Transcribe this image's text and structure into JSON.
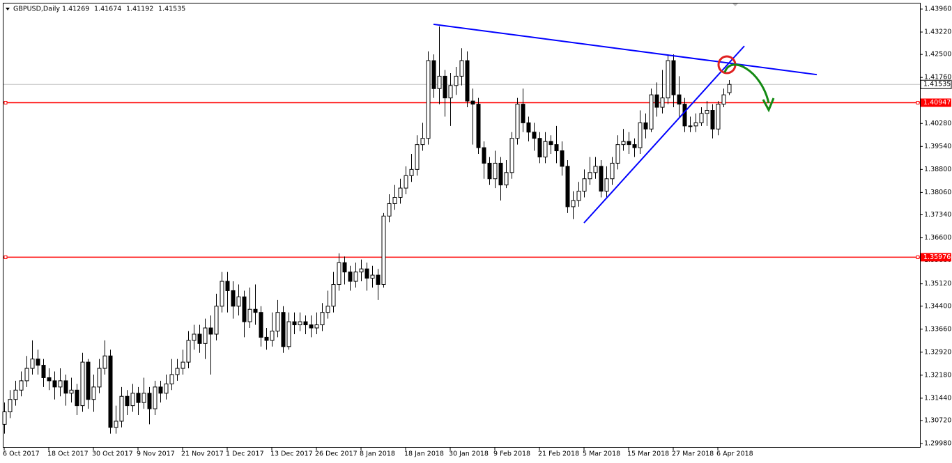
{
  "chart_data": {
    "type": "candlestick",
    "title": "GBPUSD,Daily",
    "color": "#000000",
    "background": "#ffffff",
    "open": [
      1.306,
      1.31,
      1.314,
      1.317,
      1.32,
      1.324,
      1.327,
      1.325,
      1.321,
      1.32,
      1.318,
      1.32,
      1.316,
      1.317,
      1.312,
      1.326,
      1.314,
      1.318,
      1.324,
      1.328,
      1.305,
      1.307,
      1.315,
      1.312,
      1.316,
      1.313,
      1.316,
      1.311,
      1.318,
      1.316,
      1.319,
      1.322,
      1.324,
      1.326,
      1.333,
      1.335,
      1.332,
      1.337,
      1.335,
      1.344,
      1.352,
      1.349,
      1.344,
      1.347,
      1.339,
      1.343,
      1.342,
      1.334,
      1.333,
      1.336,
      1.342,
      1.331,
      1.339,
      1.338,
      1.339,
      1.338,
      1.337,
      1.338,
      1.342,
      1.344,
      1.351,
      1.358,
      1.355,
      1.352,
      1.355,
      1.356,
      1.353,
      1.354,
      1.351,
      1.373,
      1.377,
      1.379,
      1.382,
      1.386,
      1.388,
      1.396,
      1.398,
      1.423,
      1.414,
      1.418,
      1.411,
      1.415,
      1.418,
      1.423,
      1.41,
      1.409,
      1.395,
      1.39,
      1.385,
      1.39,
      1.383,
      1.387,
      1.398,
      1.409,
      1.403,
      1.4,
      1.398,
      1.392,
      1.397,
      1.396,
      1.394,
      1.389,
      1.376,
      1.378,
      1.381,
      1.385,
      1.387,
      1.389,
      1.381,
      1.385,
      1.39,
      1.396,
      1.397,
      1.396,
      1.395,
      1.403,
      1.401,
      1.412,
      1.408,
      1.411,
      1.423,
      1.412,
      1.409,
      1.402,
      1.402,
      1.403,
      1.406,
      1.407,
      1.401,
      1.409,
      1.41269
    ],
    "high": [
      1.313,
      1.317,
      1.32,
      1.323,
      1.328,
      1.333,
      1.33,
      1.327,
      1.324,
      1.323,
      1.324,
      1.322,
      1.321,
      1.319,
      1.329,
      1.327,
      1.322,
      1.327,
      1.333,
      1.33,
      1.312,
      1.318,
      1.317,
      1.319,
      1.318,
      1.321,
      1.318,
      1.32,
      1.32,
      1.322,
      1.327,
      1.327,
      1.33,
      1.336,
      1.338,
      1.338,
      1.34,
      1.341,
      1.348,
      1.355,
      1.355,
      1.352,
      1.351,
      1.349,
      1.35,
      1.351,
      1.344,
      1.337,
      1.342,
      1.346,
      1.344,
      1.342,
      1.342,
      1.342,
      1.341,
      1.341,
      1.342,
      1.345,
      1.349,
      1.355,
      1.361,
      1.36,
      1.357,
      1.358,
      1.359,
      1.358,
      1.357,
      1.356,
      1.374,
      1.38,
      1.383,
      1.385,
      1.389,
      1.393,
      1.399,
      1.403,
      1.426,
      1.425,
      1.434,
      1.42,
      1.419,
      1.421,
      1.427,
      1.426,
      1.414,
      1.411,
      1.397,
      1.392,
      1.394,
      1.392,
      1.391,
      1.4,
      1.411,
      1.414,
      1.405,
      1.403,
      1.4,
      1.4,
      1.399,
      1.402,
      1.397,
      1.391,
      1.381,
      1.384,
      1.388,
      1.392,
      1.392,
      1.391,
      1.389,
      1.392,
      1.399,
      1.401,
      1.4,
      1.398,
      1.407,
      1.406,
      1.414,
      1.416,
      1.42,
      1.425,
      1.425,
      1.418,
      1.411,
      1.405,
      1.406,
      1.408,
      1.41,
      1.409,
      1.41,
      1.414,
      1.41674
    ],
    "low": [
      1.303,
      1.308,
      1.312,
      1.315,
      1.318,
      1.322,
      1.322,
      1.318,
      1.317,
      1.314,
      1.315,
      1.312,
      1.313,
      1.309,
      1.31,
      1.311,
      1.31,
      1.316,
      1.322,
      1.303,
      1.303,
      1.305,
      1.309,
      1.31,
      1.309,
      1.311,
      1.306,
      1.309,
      1.313,
      1.314,
      1.317,
      1.32,
      1.322,
      1.324,
      1.33,
      1.329,
      1.327,
      1.322,
      1.333,
      1.342,
      1.342,
      1.34,
      1.341,
      1.334,
      1.337,
      1.338,
      1.331,
      1.33,
      1.331,
      1.334,
      1.329,
      1.33,
      1.335,
      1.336,
      1.335,
      1.334,
      1.335,
      1.336,
      1.34,
      1.342,
      1.349,
      1.351,
      1.349,
      1.35,
      1.352,
      1.349,
      1.35,
      1.346,
      1.35,
      1.371,
      1.375,
      1.377,
      1.38,
      1.384,
      1.386,
      1.394,
      1.396,
      1.411,
      1.409,
      1.405,
      1.402,
      1.412,
      1.415,
      1.408,
      1.396,
      1.393,
      1.385,
      1.383,
      1.382,
      1.378,
      1.382,
      1.385,
      1.396,
      1.4,
      1.397,
      1.394,
      1.39,
      1.39,
      1.393,
      1.39,
      1.386,
      1.374,
      1.372,
      1.376,
      1.379,
      1.383,
      1.385,
      1.379,
      1.379,
      1.383,
      1.388,
      1.394,
      1.393,
      1.392,
      1.393,
      1.398,
      1.4,
      1.405,
      1.406,
      1.409,
      1.408,
      1.405,
      1.4,
      1.4,
      1.4,
      1.402,
      1.402,
      1.398,
      1.399,
      1.408,
      1.41192
    ],
    "close": [
      1.31,
      1.314,
      1.317,
      1.32,
      1.324,
      1.327,
      1.325,
      1.321,
      1.32,
      1.318,
      1.32,
      1.316,
      1.317,
      1.312,
      1.326,
      1.314,
      1.318,
      1.324,
      1.328,
      1.305,
      1.307,
      1.315,
      1.312,
      1.316,
      1.313,
      1.316,
      1.311,
      1.318,
      1.316,
      1.319,
      1.322,
      1.324,
      1.326,
      1.333,
      1.335,
      1.332,
      1.337,
      1.335,
      1.344,
      1.352,
      1.349,
      1.344,
      1.347,
      1.339,
      1.343,
      1.342,
      1.334,
      1.333,
      1.336,
      1.342,
      1.331,
      1.339,
      1.338,
      1.339,
      1.338,
      1.337,
      1.338,
      1.342,
      1.344,
      1.351,
      1.358,
      1.355,
      1.352,
      1.355,
      1.356,
      1.353,
      1.354,
      1.351,
      1.373,
      1.377,
      1.379,
      1.382,
      1.386,
      1.388,
      1.396,
      1.398,
      1.423,
      1.414,
      1.418,
      1.411,
      1.415,
      1.418,
      1.423,
      1.41,
      1.409,
      1.395,
      1.39,
      1.385,
      1.39,
      1.383,
      1.387,
      1.398,
      1.409,
      1.403,
      1.4,
      1.398,
      1.392,
      1.397,
      1.396,
      1.394,
      1.389,
      1.376,
      1.378,
      1.381,
      1.385,
      1.387,
      1.389,
      1.381,
      1.385,
      1.39,
      1.396,
      1.397,
      1.396,
      1.395,
      1.403,
      1.401,
      1.412,
      1.408,
      1.411,
      1.423,
      1.412,
      1.409,
      1.402,
      1.402,
      1.403,
      1.406,
      1.407,
      1.401,
      1.409,
      1.412,
      1.41535
    ],
    "xlim": [
      -0.125,
      164.25
    ],
    "xticks": [
      {
        "value": 0,
        "label": "6 Oct 2017"
      },
      {
        "value": 8,
        "label": "18 Oct 2017"
      },
      {
        "value": 16,
        "label": "30 Oct 2017"
      },
      {
        "value": 24,
        "label": "9 Nov 2017"
      },
      {
        "value": 32,
        "label": "21 Nov 2017"
      },
      {
        "value": 40,
        "label": "1 Dec 2017"
      },
      {
        "value": 48,
        "label": "13 Dec 2017"
      },
      {
        "value": 56,
        "label": "26 Dec 2017"
      },
      {
        "value": 64,
        "label": "8 Jan 2018"
      },
      {
        "value": 72,
        "label": "18 Jan 2018"
      },
      {
        "value": 80,
        "label": "30 Jan 2018"
      },
      {
        "value": 88,
        "label": "9 Feb 2018"
      },
      {
        "value": 96,
        "label": "21 Feb 2018"
      },
      {
        "value": 104,
        "label": "5 Mar 2018"
      },
      {
        "value": 112,
        "label": "15 Mar 2018"
      },
      {
        "value": 120,
        "label": "27 Mar 2018"
      },
      {
        "value": 128,
        "label": "6 Apr 2018"
      }
    ],
    "ylim": [
      1.2987,
      1.44139
    ],
    "yticks": [
      {
        "value": 1.4396,
        "label": "1.43960"
      },
      {
        "value": 1.4322,
        "label": "1.43220"
      },
      {
        "value": 1.425,
        "label": "1.42500"
      },
      {
        "value": 1.4176,
        "label": "1.41760"
      },
      {
        "value": 1.4028,
        "label": "1.40280"
      },
      {
        "value": 1.3954,
        "label": "1.39540"
      },
      {
        "value": 1.388,
        "label": "1.38800"
      },
      {
        "value": 1.3806,
        "label": "1.38060"
      },
      {
        "value": 1.3734,
        "label": "1.37340"
      },
      {
        "value": 1.366,
        "label": "1.36600"
      },
      {
        "value": 1.3588,
        "label": "1.35880"
      },
      {
        "value": 1.3512,
        "label": "1.35120"
      },
      {
        "value": 1.344,
        "label": "1.34400"
      },
      {
        "value": 1.3366,
        "label": "1.33660"
      },
      {
        "value": 1.3292,
        "label": "1.32920"
      },
      {
        "value": 1.3218,
        "label": "1.32180"
      },
      {
        "value": 1.3144,
        "label": "1.31440"
      },
      {
        "value": 1.3072,
        "label": "1.30720"
      },
      {
        "value": 1.2998,
        "label": "1.29980"
      }
    ],
    "hlines": [
      {
        "value": 1.40947,
        "color": "#ff0000"
      },
      {
        "value": 1.35976,
        "color": "#ff0000"
      }
    ],
    "trendlines": [
      {
        "x": [
          77,
          145.75
        ],
        "y": [
          1.4347,
          1.4185
        ],
        "color": "#0000ff"
      },
      {
        "x": [
          104,
          132.75
        ],
        "y": [
          1.3708,
          1.4277
        ],
        "color": "#0000ff"
      }
    ]
  }
}
